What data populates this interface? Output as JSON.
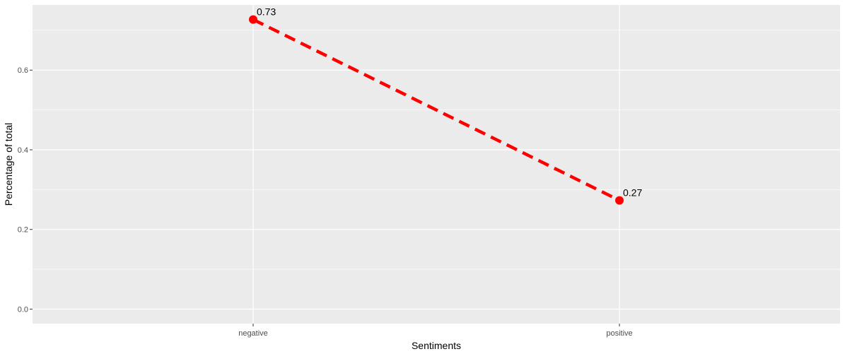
{
  "chart_data": {
    "type": "line",
    "categories": [
      "negative",
      "positive"
    ],
    "series": [
      {
        "values": [
          0.727,
          0.273
        ],
        "labels": [
          "0.73",
          "0.27"
        ]
      }
    ],
    "xlabel": "Sentiments",
    "ylabel": "Percentage of total",
    "ylim": [
      -0.0364,
      0.7636
    ],
    "yticks": [
      0.0,
      0.2,
      0.4,
      0.6
    ],
    "ytick_labels": [
      "0.0",
      "0.2",
      "0.4",
      "0.6"
    ],
    "grid": true,
    "line_style": "dashed",
    "colors": {
      "series": "#ff0000",
      "panel": "#ebebeb",
      "grid": "#ffffff",
      "tick_text": "#4d4d4d",
      "title_text": "#000000"
    }
  }
}
